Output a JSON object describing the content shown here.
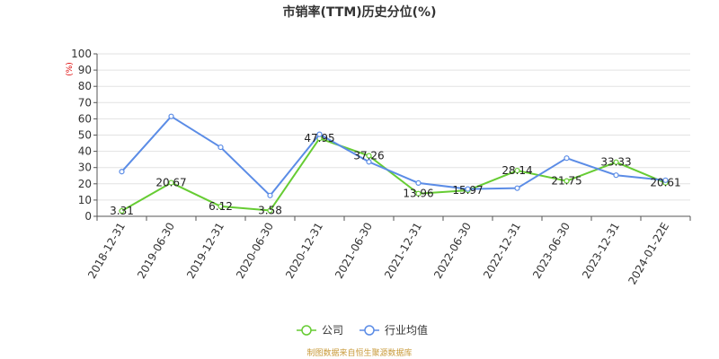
{
  "colors": {
    "company": "#66cc33",
    "industry": "#5b8ce6",
    "grid": "#e2e2e2",
    "axis": "#555555",
    "unit": "#dd0000",
    "source": "#c89a3a"
  },
  "footer": {
    "source": "制图数据来自恒生聚源数据库"
  },
  "chart_data": {
    "type": "line",
    "title": "市销率(TTM)历史分位(%)",
    "yunit": "(%)",
    "ylim": [
      0,
      100
    ],
    "yticks": [
      0,
      10,
      20,
      30,
      40,
      50,
      60,
      70,
      80,
      90,
      100
    ],
    "grid": true,
    "legend_position": "bottom-center",
    "categories": [
      "2018-12-31",
      "2019-06-30",
      "2019-12-31",
      "2020-06-30",
      "2020-12-31",
      "2021-06-30",
      "2021-12-31",
      "2022-06-30",
      "2022-12-31",
      "2023-06-30",
      "2023-12-31",
      "2024-01-22E"
    ],
    "series": [
      {
        "name": "公司",
        "color": "#66cc33",
        "values": [
          3.31,
          20.67,
          6.12,
          3.58,
          47.95,
          37.26,
          13.96,
          15.97,
          28.14,
          21.75,
          33.33,
          20.61
        ],
        "labels": [
          "3.31",
          "20.67",
          "6.12",
          "3.58",
          "47.95",
          "37.26",
          "13.96",
          "15.97",
          "28.14",
          "21.75",
          "33.33",
          "20.61"
        ]
      },
      {
        "name": "行业均值",
        "color": "#5b8ce6",
        "values": [
          27.5,
          61.5,
          42.5,
          12.8,
          50.5,
          33.5,
          20.5,
          16.8,
          17.3,
          35.8,
          25.3,
          22.2
        ]
      }
    ]
  }
}
